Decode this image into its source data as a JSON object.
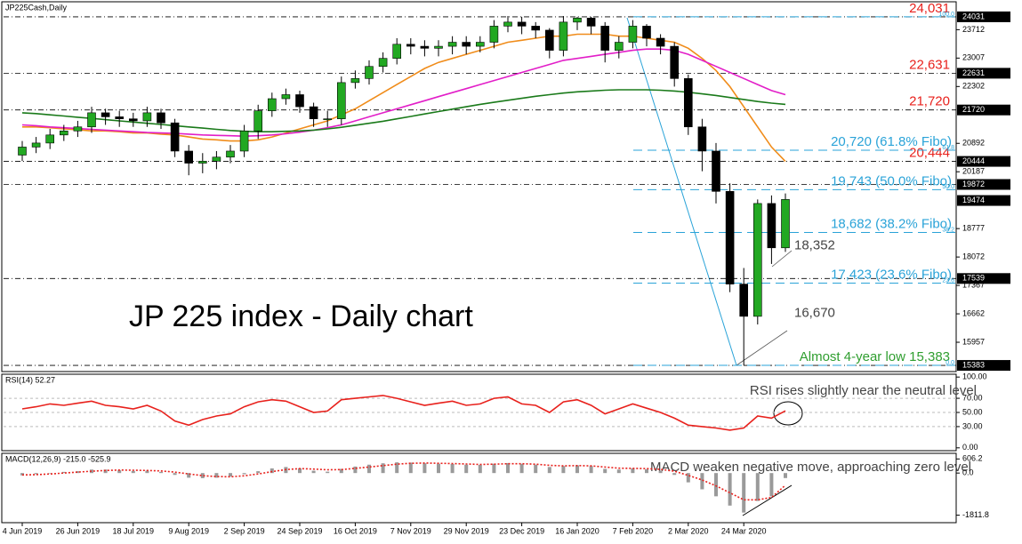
{
  "chart_data": [
    {
      "type": "candlestick",
      "title": "JP225Cash,Daily",
      "annotation": "JP 225 index - Daily chart",
      "categories": [
        "4 Jun 2019",
        null,
        null,
        null,
        "26 Jun 2019",
        null,
        null,
        null,
        "18 Jul 2019",
        null,
        null,
        null,
        "9 Aug 2019",
        null,
        null,
        null,
        "2 Sep 2019",
        null,
        null,
        null,
        "24 Sep 2019",
        null,
        null,
        null,
        "16 Oct 2019",
        null,
        null,
        null,
        "7 Nov 2019",
        null,
        null,
        null,
        "29 Nov 2019",
        null,
        null,
        null,
        "23 Dec 2019",
        null,
        null,
        null,
        "16 Jan 2020",
        null,
        null,
        null,
        "7 Feb 2020",
        null,
        null,
        null,
        "2 Mar 2020",
        null,
        null,
        null,
        "24 Mar 2020",
        null,
        null,
        null
      ],
      "open": [
        20600,
        20800,
        20900,
        21100,
        21200,
        21300,
        21650,
        21550,
        21500,
        21450,
        21650,
        21400,
        20700,
        20400,
        20450,
        20550,
        20700,
        21200,
        21700,
        22000,
        22100,
        21800,
        21500,
        21500,
        22400,
        22500,
        22800,
        23000,
        23350,
        23300,
        23250,
        23300,
        23400,
        23300,
        23400,
        23800,
        23900,
        23800,
        23700,
        23200,
        23900,
        24000,
        23800,
        23200,
        23400,
        23800,
        23500,
        23300,
        22500,
        21300,
        20700,
        19700,
        17400,
        16600,
        19400,
        18300
      ],
      "high": [
        20950,
        21050,
        21250,
        21350,
        21450,
        21800,
        21750,
        21700,
        21650,
        21800,
        21750,
        21500,
        20850,
        20650,
        20700,
        20850,
        21350,
        21850,
        22150,
        22250,
        22200,
        21900,
        21700,
        22550,
        22700,
        22950,
        23150,
        23500,
        23500,
        23450,
        23450,
        23550,
        23550,
        23550,
        23950,
        24050,
        24031,
        23900,
        23750,
        24050,
        24031,
        24031,
        23900,
        23550,
        23950,
        23850,
        23600,
        23400,
        22600,
        21500,
        20900,
        19900,
        17800,
        19500,
        19600,
        19650
      ],
      "low": [
        20450,
        20650,
        20750,
        20950,
        21050,
        21150,
        21350,
        21300,
        21300,
        21300,
        21250,
        20550,
        20100,
        20150,
        20250,
        20400,
        20550,
        21000,
        21550,
        21850,
        21650,
        21300,
        21300,
        21350,
        22250,
        22350,
        22650,
        22850,
        23100,
        23050,
        23050,
        23100,
        23100,
        23150,
        23250,
        23650,
        23600,
        23500,
        23000,
        23050,
        23700,
        23600,
        22900,
        23000,
        23250,
        23300,
        23100,
        22300,
        21100,
        20200,
        19400,
        17200,
        15383,
        16400,
        17900,
        18200
      ],
      "close": [
        20800,
        20900,
        21100,
        21200,
        21300,
        21650,
        21550,
        21500,
        21450,
        21650,
        21400,
        20700,
        20400,
        20450,
        20550,
        20700,
        21200,
        21700,
        22000,
        22100,
        21800,
        21500,
        21500,
        22400,
        22500,
        22800,
        23000,
        23350,
        23300,
        23250,
        23300,
        23400,
        23300,
        23400,
        23800,
        23900,
        23800,
        23700,
        23200,
        23900,
        24000,
        23800,
        23200,
        23400,
        23800,
        23500,
        23300,
        22500,
        21300,
        20700,
        19700,
        17400,
        16600,
        19400,
        18300,
        19500
      ],
      "up_color": "#22a822",
      "down_color": "#000000",
      "series": [
        {
          "color": "#f08c1a",
          "values": [
            21300,
            21300,
            21280,
            21250,
            21230,
            21200,
            21200,
            21180,
            21150,
            21150,
            21120,
            21100,
            21050,
            21000,
            20980,
            20950,
            20950,
            20980,
            21050,
            21150,
            21250,
            21350,
            21450,
            21600,
            21750,
            21950,
            22150,
            22350,
            22550,
            22750,
            22900,
            23000,
            23100,
            23200,
            23300,
            23400,
            23450,
            23500,
            23550,
            23550,
            23600,
            23600,
            23600,
            23550,
            23550,
            23500,
            23450,
            23400,
            23250,
            23000,
            22700,
            22300,
            21800,
            21300,
            20800,
            20444
          ]
        },
        {
          "color": "#e21ec8",
          "values": [
            21350,
            21330,
            21300,
            21280,
            21260,
            21240,
            21220,
            21200,
            21180,
            21160,
            21150,
            21140,
            21120,
            21100,
            21090,
            21080,
            21070,
            21080,
            21100,
            21130,
            21170,
            21220,
            21280,
            21350,
            21450,
            21550,
            21650,
            21750,
            21850,
            21950,
            22050,
            22150,
            22250,
            22350,
            22450,
            22550,
            22650,
            22750,
            22850,
            22950,
            23000,
            23050,
            23100,
            23150,
            23200,
            23230,
            23230,
            23200,
            23100,
            22950,
            22800,
            22650,
            22500,
            22350,
            22200,
            22100
          ]
        },
        {
          "color": "#1a7a1a",
          "values": [
            21650,
            21630,
            21600,
            21570,
            21540,
            21510,
            21480,
            21450,
            21420,
            21390,
            21360,
            21330,
            21300,
            21270,
            21240,
            21210,
            21190,
            21180,
            21180,
            21190,
            21200,
            21220,
            21250,
            21290,
            21340,
            21390,
            21440,
            21500,
            21560,
            21620,
            21680,
            21740,
            21800,
            21860,
            21910,
            21960,
            22010,
            22060,
            22100,
            22140,
            22170,
            22190,
            22210,
            22220,
            22220,
            22220,
            22210,
            22190,
            22160,
            22120,
            22080,
            22030,
            21980,
            21930,
            21890,
            21860
          ]
        }
      ],
      "ylim": [
        15230,
        24360
      ],
      "yticks": [
        23712,
        23007,
        22302,
        20892,
        20187,
        18777,
        18072,
        17367,
        16662,
        15957
      ],
      "last": 19474,
      "levels": [
        {
          "value": 24031,
          "label": "24,031",
          "color": "#e8211c"
        },
        {
          "value": 22631,
          "label": "22,631",
          "color": "#e8211c"
        },
        {
          "value": 21720,
          "label": "21,720",
          "color": "#e8211c"
        },
        {
          "value": 20444,
          "label": "20,444",
          "color": "#e8211c"
        },
        {
          "value": 19872
        },
        {
          "value": 17539
        },
        {
          "value": 15383,
          "label": "Almost 4-year low 15,383",
          "color": "#2f9e2f"
        }
      ],
      "fibo_color": "#2aa3d8",
      "fibo": [
        {
          "value": 24031,
          "tag": "100.0"
        },
        {
          "value": 20720,
          "label": "20,720 (61.8% Fibo)",
          "tag": "61.8"
        },
        {
          "value": 19743,
          "label": "19,743 (50.0% Fibo)",
          "tag": "50.0"
        },
        {
          "value": 18682,
          "label": "18,682 (38.2% Fibo)",
          "tag": "38.2"
        },
        {
          "value": 17423,
          "label": "17,423 (23.6% Fibo)",
          "tag": "23.6"
        },
        {
          "value": 15383,
          "tag": "0.0"
        }
      ],
      "notes": [
        {
          "value": 18352,
          "label": "18,352"
        },
        {
          "value": 16670,
          "label": "16,670"
        }
      ]
    },
    {
      "type": "line",
      "title": "RSI(14) 52.27",
      "annotation": "RSI rises slightly near the neutral level",
      "color": "#e8211c",
      "values": [
        55,
        58,
        62,
        60,
        63,
        66,
        60,
        58,
        55,
        60,
        52,
        38,
        32,
        40,
        45,
        48,
        58,
        65,
        68,
        66,
        58,
        50,
        52,
        68,
        70,
        72,
        74,
        70,
        65,
        60,
        63,
        66,
        60,
        62,
        70,
        72,
        62,
        60,
        50,
        65,
        68,
        60,
        48,
        55,
        62,
        56,
        50,
        42,
        32,
        30,
        28,
        25,
        28,
        45,
        42,
        52.27
      ],
      "ylim": [
        -4,
        104
      ],
      "yticks": [
        {
          "value": 100,
          "label": "100.00"
        },
        {
          "value": 70,
          "label": "70.00"
        },
        {
          "value": 50,
          "label": "50.00"
        },
        {
          "value": 30,
          "label": "30.00"
        },
        {
          "value": 0,
          "label": "0.00"
        }
      ],
      "guides": [
        70,
        50,
        30
      ]
    },
    {
      "type": "macd",
      "title": "MACD(12,26,9) -215.0 -525.9",
      "annotation": "MACD weaken negative move, approaching zero level",
      "series": [
        {
          "color": "#9a9a9a",
          "values": [
            -100,
            -50,
            0,
            50,
            80,
            150,
            150,
            120,
            90,
            100,
            50,
            -80,
            -200,
            -220,
            -200,
            -150,
            -50,
            80,
            200,
            260,
            200,
            100,
            60,
            180,
            280,
            360,
            420,
            460,
            450,
            420,
            400,
            390,
            360,
            350,
            400,
            430,
            400,
            360,
            260,
            300,
            330,
            300,
            180,
            150,
            200,
            160,
            100,
            -80,
            -400,
            -700,
            -1000,
            -1400,
            -1700,
            -1200,
            -1000,
            -215
          ]
        },
        {
          "color": "#e8211c",
          "values": [
            -80,
            -70,
            -40,
            0,
            40,
            80,
            110,
            130,
            120,
            110,
            90,
            40,
            -40,
            -110,
            -150,
            -160,
            -120,
            -40,
            60,
            150,
            190,
            170,
            140,
            150,
            200,
            260,
            320,
            380,
            420,
            430,
            420,
            410,
            390,
            370,
            380,
            400,
            400,
            380,
            330,
            310,
            320,
            310,
            260,
            210,
            200,
            190,
            160,
            80,
            -100,
            -300,
            -550,
            -850,
            -1150,
            -1150,
            -1050,
            -525.9
          ]
        }
      ],
      "ylim": [
        -2134,
        848
      ],
      "yticks": [
        {
          "value": 606.2,
          "label": "606.2"
        },
        {
          "value": 0,
          "label": "0.0"
        },
        {
          "value": -1811.8,
          "label": "-1811.8"
        }
      ]
    }
  ]
}
